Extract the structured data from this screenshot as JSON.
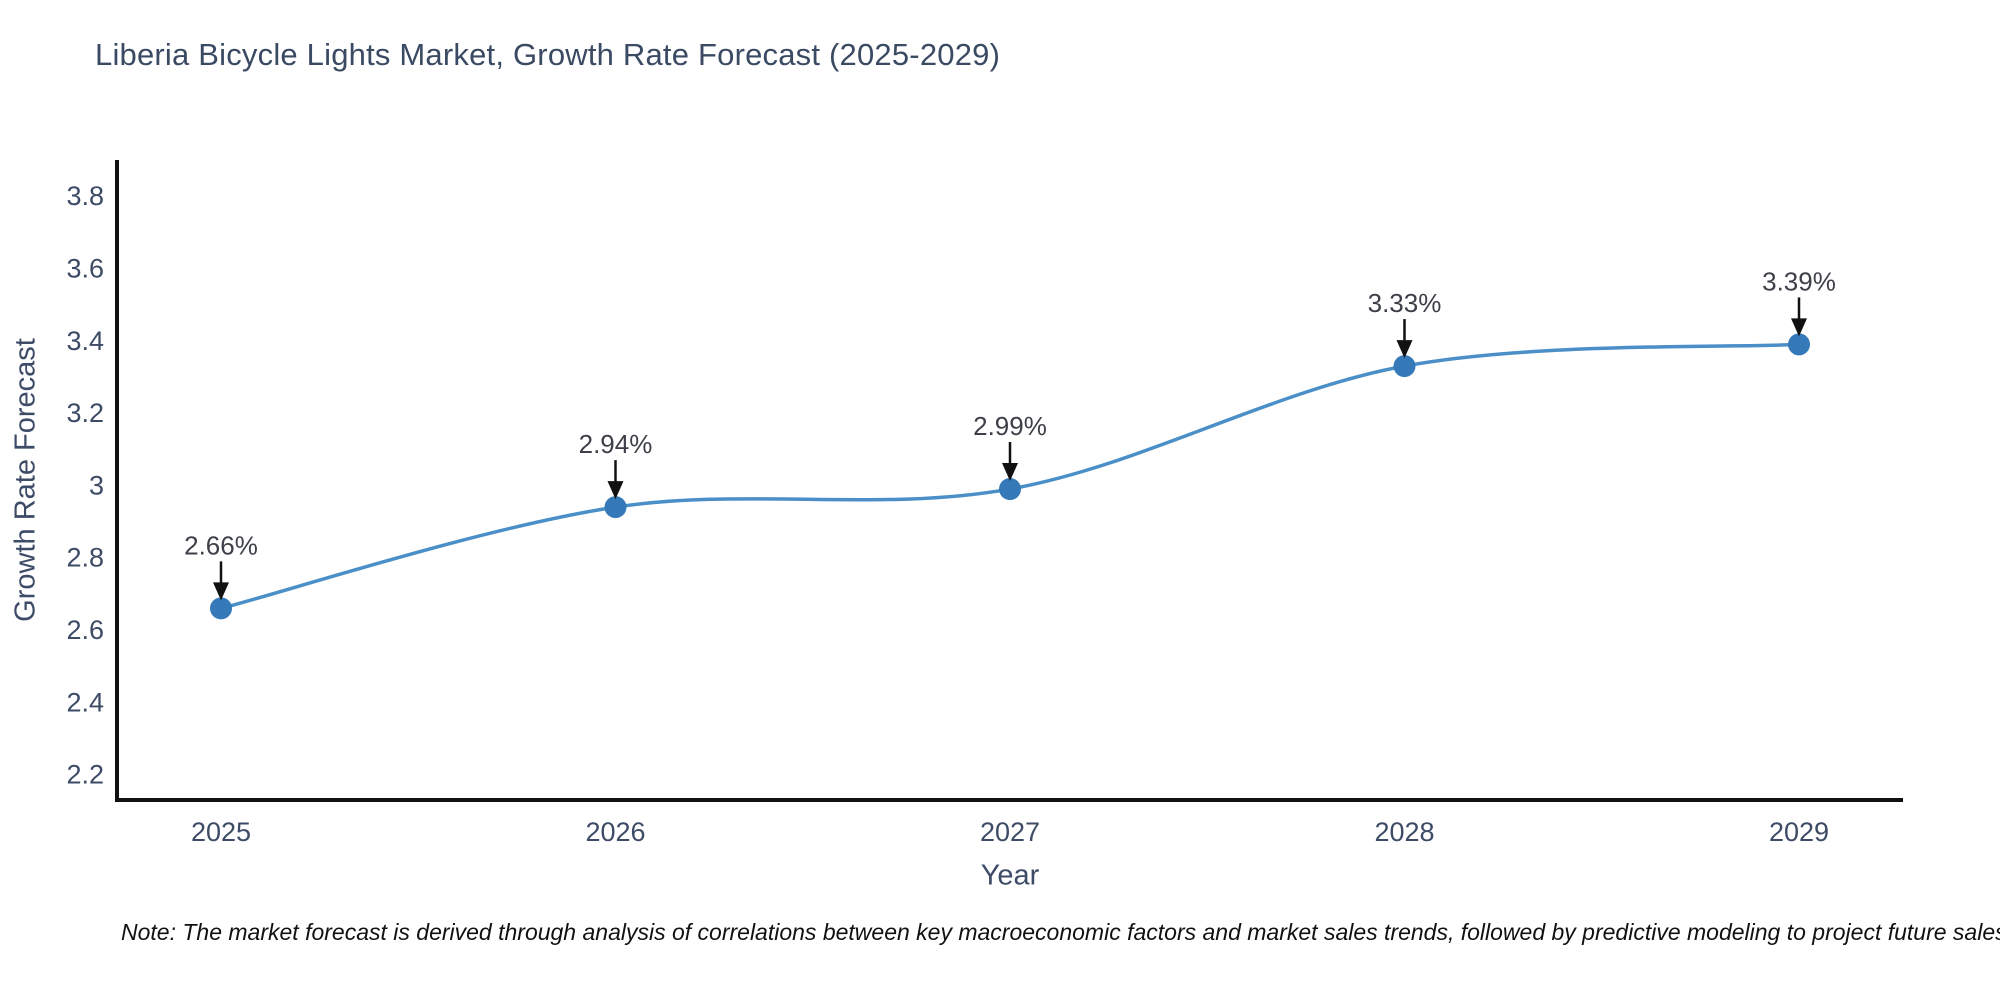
{
  "page": {
    "title": "Liberia Bicycle Lights Market, Growth Rate Forecast (2025-2029)",
    "note": "Note: The market forecast is derived through analysis of correlations between key macroeconomic factors and market sales trends, followed by predictive modeling to project future sales"
  },
  "colors": {
    "title": "#3b4a63",
    "tick": "#3d4b66",
    "axis_line": "#111111",
    "series_line": "#4a8fc7",
    "marker": "#3579b8",
    "annotation_text": "#3d4048",
    "arrow": "#111111",
    "note": "#111111"
  },
  "chart_data": {
    "type": "line",
    "title": "Liberia Bicycle Lights Market, Growth Rate Forecast (2025-2029)",
    "x": [
      "2025",
      "2026",
      "2027",
      "2028",
      "2029"
    ],
    "series": [
      {
        "name": "Growth Rate Forecast",
        "values": [
          2.66,
          2.94,
          2.99,
          3.33,
          3.39
        ]
      }
    ],
    "point_labels": [
      "2.66%",
      "2.94%",
      "2.99%",
      "3.33%",
      "3.39%"
    ],
    "xlabel": "Year",
    "ylabel": "Growth Rate Forecast",
    "ylim": [
      2.13,
      3.9
    ],
    "yticks": [
      2.2,
      2.4,
      2.6,
      2.8,
      3,
      3.2,
      3.4,
      3.6,
      3.8
    ],
    "line_shape": "spline",
    "grid": false,
    "legend": "none",
    "annotations": "arrow-down-to-point"
  }
}
